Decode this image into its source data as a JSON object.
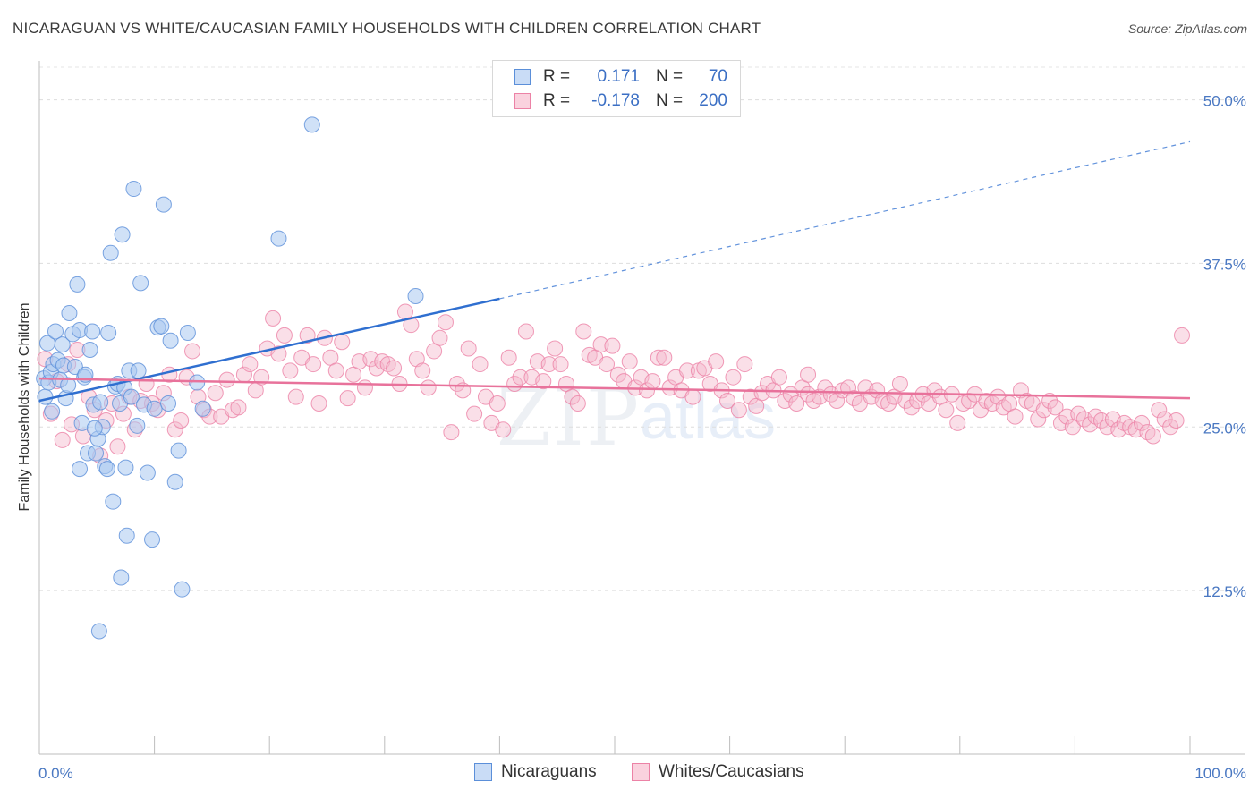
{
  "header": {
    "title": "NICARAGUAN VS WHITE/CAUCASIAN FAMILY HOUSEHOLDS WITH CHILDREN CORRELATION CHART",
    "source": "Source: ZipAtlas.com"
  },
  "watermark": {
    "zip": "ZIP",
    "atlas": "atlas"
  },
  "legend": {
    "rows": [
      {
        "r_label": "R =",
        "r_value": "0.171",
        "n_label": "N =",
        "n_value": "70",
        "color": "#a9c8f0"
      },
      {
        "r_label": "R =",
        "r_value": "-0.178",
        "n_label": "N =",
        "n_value": "200",
        "color": "#f5b8cb"
      }
    ]
  },
  "bottom_legend": [
    {
      "label": "Nicaraguans",
      "color": "#a9c8f0"
    },
    {
      "label": "Whites/Caucasians",
      "color": "#f5b8cb"
    }
  ],
  "colors": {
    "blue": "#5b8fd9",
    "blue_fill": "#a9c8f0",
    "pink": "#ec82a6",
    "pink_fill": "#f5b8cb",
    "blue_line": "#2f6fd0",
    "pink_line": "#e8729b",
    "tick": "#4a78c2"
  },
  "chart_data": {
    "type": "scatter",
    "title": "NICARAGUAN VS WHITE/CAUCASIAN FAMILY HOUSEHOLDS WITH CHILDREN CORRELATION CHART",
    "xlabel": "",
    "ylabel": "Family Households with Children",
    "xlim": [
      0,
      100
    ],
    "ylim": [
      0,
      52.5
    ],
    "y_ticks": [
      12.5,
      25.0,
      37.5,
      50.0
    ],
    "y_tick_labels": [
      "12.5%",
      "25.0%",
      "37.5%",
      "50.0%"
    ],
    "x_tick_labels": [
      "0.0%",
      "100.0%"
    ],
    "x_minor_ticks": [
      0,
      10,
      20,
      30,
      40,
      50,
      60,
      70,
      80,
      90,
      100
    ],
    "grid": true,
    "series": [
      {
        "name": "Nicaraguans",
        "r": 0.171,
        "n": 70,
        "trend": {
          "x0": 0,
          "y0": 27.0,
          "x1": 40,
          "y1": 34.8,
          "dashed_to_x": 100,
          "dashed_to_y": 46.8
        },
        "points": [
          [
            0.4,
            28.7
          ],
          [
            0.5,
            27.3
          ],
          [
            0.7,
            31.4
          ],
          [
            0.8,
            28.4
          ],
          [
            1.0,
            29.2
          ],
          [
            1.1,
            26.2
          ],
          [
            1.2,
            29.8
          ],
          [
            1.4,
            32.3
          ],
          [
            1.6,
            30.1
          ],
          [
            1.8,
            28.6
          ],
          [
            2.0,
            31.3
          ],
          [
            2.1,
            29.7
          ],
          [
            2.3,
            27.2
          ],
          [
            2.5,
            28.2
          ],
          [
            2.6,
            33.7
          ],
          [
            2.9,
            32.1
          ],
          [
            3.1,
            29.6
          ],
          [
            3.3,
            35.9
          ],
          [
            3.5,
            32.4
          ],
          [
            3.7,
            25.3
          ],
          [
            3.9,
            28.8
          ],
          [
            4.0,
            29.0
          ],
          [
            4.2,
            23.0
          ],
          [
            4.4,
            30.9
          ],
          [
            4.6,
            32.3
          ],
          [
            4.7,
            26.7
          ],
          [
            4.9,
            23.0
          ],
          [
            5.1,
            24.1
          ],
          [
            5.3,
            26.9
          ],
          [
            5.5,
            25.0
          ],
          [
            5.7,
            22.0
          ],
          [
            6.0,
            32.2
          ],
          [
            6.2,
            38.3
          ],
          [
            6.4,
            19.3
          ],
          [
            6.6,
            28.1
          ],
          [
            6.8,
            28.3
          ],
          [
            7.0,
            26.8
          ],
          [
            7.2,
            39.7
          ],
          [
            7.4,
            28.0
          ],
          [
            7.6,
            16.7
          ],
          [
            7.8,
            29.3
          ],
          [
            8.0,
            27.3
          ],
          [
            8.2,
            43.2
          ],
          [
            8.5,
            25.1
          ],
          [
            8.6,
            29.3
          ],
          [
            8.8,
            36.0
          ],
          [
            9.1,
            26.7
          ],
          [
            9.4,
            21.5
          ],
          [
            9.8,
            16.4
          ],
          [
            10.0,
            26.4
          ],
          [
            10.3,
            32.6
          ],
          [
            10.6,
            32.7
          ],
          [
            10.8,
            42.0
          ],
          [
            11.2,
            26.8
          ],
          [
            11.4,
            31.6
          ],
          [
            11.8,
            20.8
          ],
          [
            12.1,
            23.2
          ],
          [
            12.4,
            12.6
          ],
          [
            12.9,
            32.2
          ],
          [
            13.7,
            28.4
          ],
          [
            4.8,
            24.9
          ],
          [
            5.9,
            21.8
          ],
          [
            7.5,
            21.9
          ],
          [
            3.5,
            21.8
          ],
          [
            5.2,
            9.4
          ],
          [
            7.1,
            13.5
          ],
          [
            14.2,
            26.4
          ],
          [
            20.8,
            39.4
          ],
          [
            23.7,
            48.1
          ],
          [
            32.7,
            35.0
          ]
        ]
      },
      {
        "name": "Whites/Caucasians",
        "r": -0.178,
        "n": 200,
        "trend": {
          "x0": 0,
          "y0": 28.7,
          "x1": 100,
          "y1": 27.2
        },
        "points": [
          [
            0.5,
            30.2
          ],
          [
            1.0,
            26.0
          ],
          [
            1.5,
            28.5
          ],
          [
            2.0,
            24.0
          ],
          [
            2.5,
            29.8
          ],
          [
            2.8,
            25.2
          ],
          [
            3.3,
            30.9
          ],
          [
            3.8,
            24.3
          ],
          [
            4.3,
            27.3
          ],
          [
            4.8,
            26.3
          ],
          [
            5.3,
            22.8
          ],
          [
            5.8,
            25.5
          ],
          [
            6.3,
            26.8
          ],
          [
            6.8,
            23.5
          ],
          [
            7.3,
            26.0
          ],
          [
            7.8,
            27.3
          ],
          [
            8.3,
            24.8
          ],
          [
            8.8,
            27.0
          ],
          [
            9.3,
            28.3
          ],
          [
            9.8,
            26.8
          ],
          [
            10.3,
            26.3
          ],
          [
            10.8,
            27.6
          ],
          [
            11.3,
            29.0
          ],
          [
            11.8,
            24.8
          ],
          [
            12.3,
            25.5
          ],
          [
            12.8,
            28.8
          ],
          [
            13.3,
            30.8
          ],
          [
            13.8,
            27.3
          ],
          [
            14.3,
            26.3
          ],
          [
            14.8,
            25.8
          ],
          [
            15.3,
            27.6
          ],
          [
            15.8,
            25.8
          ],
          [
            16.3,
            28.6
          ],
          [
            16.8,
            26.3
          ],
          [
            17.3,
            26.5
          ],
          [
            17.8,
            29.0
          ],
          [
            18.3,
            29.8
          ],
          [
            18.8,
            27.8
          ],
          [
            19.3,
            28.8
          ],
          [
            19.8,
            31.0
          ],
          [
            20.3,
            33.3
          ],
          [
            20.8,
            30.6
          ],
          [
            21.3,
            32.0
          ],
          [
            21.8,
            29.3
          ],
          [
            22.3,
            27.3
          ],
          [
            22.8,
            30.3
          ],
          [
            23.3,
            32.0
          ],
          [
            23.8,
            29.8
          ],
          [
            24.3,
            26.8
          ],
          [
            24.8,
            31.8
          ],
          [
            25.3,
            30.3
          ],
          [
            25.8,
            29.3
          ],
          [
            26.3,
            31.5
          ],
          [
            26.8,
            27.2
          ],
          [
            27.3,
            29.0
          ],
          [
            27.8,
            30.0
          ],
          [
            28.3,
            28.0
          ],
          [
            28.8,
            30.2
          ],
          [
            29.3,
            29.5
          ],
          [
            29.8,
            30.0
          ],
          [
            30.3,
            29.8
          ],
          [
            30.8,
            29.5
          ],
          [
            31.3,
            28.3
          ],
          [
            31.8,
            33.8
          ],
          [
            32.3,
            32.8
          ],
          [
            32.8,
            30.2
          ],
          [
            33.3,
            29.3
          ],
          [
            33.8,
            28.0
          ],
          [
            34.3,
            30.8
          ],
          [
            34.8,
            31.8
          ],
          [
            35.3,
            33.0
          ],
          [
            35.8,
            24.6
          ],
          [
            36.3,
            28.3
          ],
          [
            36.8,
            27.8
          ],
          [
            37.3,
            31.0
          ],
          [
            37.8,
            26.0
          ],
          [
            38.3,
            29.8
          ],
          [
            38.8,
            27.3
          ],
          [
            39.3,
            25.3
          ],
          [
            39.8,
            26.8
          ],
          [
            40.3,
            24.8
          ],
          [
            40.8,
            30.3
          ],
          [
            41.3,
            28.3
          ],
          [
            41.8,
            28.8
          ],
          [
            42.3,
            32.3
          ],
          [
            42.8,
            28.8
          ],
          [
            43.3,
            30.0
          ],
          [
            43.8,
            28.5
          ],
          [
            44.3,
            29.8
          ],
          [
            44.8,
            31.0
          ],
          [
            45.3,
            29.8
          ],
          [
            45.8,
            28.3
          ],
          [
            46.3,
            27.3
          ],
          [
            46.8,
            26.8
          ],
          [
            47.3,
            32.3
          ],
          [
            47.8,
            30.5
          ],
          [
            48.3,
            30.3
          ],
          [
            48.8,
            31.3
          ],
          [
            49.3,
            29.8
          ],
          [
            49.8,
            31.2
          ],
          [
            50.3,
            29.0
          ],
          [
            50.8,
            28.5
          ],
          [
            51.3,
            30.0
          ],
          [
            51.8,
            28.0
          ],
          [
            52.3,
            28.8
          ],
          [
            52.8,
            27.8
          ],
          [
            53.3,
            28.5
          ],
          [
            53.8,
            30.3
          ],
          [
            54.3,
            30.3
          ],
          [
            54.8,
            28.0
          ],
          [
            55.3,
            28.8
          ],
          [
            55.8,
            27.8
          ],
          [
            56.3,
            29.3
          ],
          [
            56.8,
            27.3
          ],
          [
            57.3,
            29.3
          ],
          [
            57.8,
            29.5
          ],
          [
            58.3,
            28.3
          ],
          [
            58.8,
            30.0
          ],
          [
            59.3,
            27.8
          ],
          [
            59.8,
            27.0
          ],
          [
            60.3,
            28.8
          ],
          [
            60.8,
            26.3
          ],
          [
            61.3,
            29.8
          ],
          [
            61.8,
            27.3
          ],
          [
            62.3,
            26.6
          ],
          [
            62.8,
            27.6
          ],
          [
            63.3,
            28.3
          ],
          [
            63.8,
            27.8
          ],
          [
            64.3,
            28.8
          ],
          [
            64.8,
            27.0
          ],
          [
            65.3,
            27.5
          ],
          [
            65.8,
            26.8
          ],
          [
            66.3,
            28.0
          ],
          [
            66.8,
            27.5
          ],
          [
            67.3,
            27.0
          ],
          [
            67.8,
            27.3
          ],
          [
            68.3,
            28.0
          ],
          [
            68.8,
            27.5
          ],
          [
            69.3,
            27.0
          ],
          [
            69.8,
            27.8
          ],
          [
            70.3,
            28.0
          ],
          [
            70.8,
            27.2
          ],
          [
            71.3,
            26.8
          ],
          [
            71.8,
            28.0
          ],
          [
            72.3,
            27.3
          ],
          [
            72.8,
            27.8
          ],
          [
            73.3,
            27.0
          ],
          [
            73.8,
            26.8
          ],
          [
            74.3,
            27.3
          ],
          [
            74.8,
            28.3
          ],
          [
            75.3,
            27.0
          ],
          [
            75.8,
            26.5
          ],
          [
            76.3,
            27.0
          ],
          [
            76.8,
            27.5
          ],
          [
            77.3,
            26.8
          ],
          [
            77.8,
            27.8
          ],
          [
            78.3,
            27.3
          ],
          [
            78.8,
            26.3
          ],
          [
            79.3,
            27.5
          ],
          [
            79.8,
            25.3
          ],
          [
            80.3,
            26.8
          ],
          [
            80.8,
            27.0
          ],
          [
            81.3,
            27.5
          ],
          [
            81.8,
            26.3
          ],
          [
            82.3,
            27.0
          ],
          [
            82.8,
            26.8
          ],
          [
            83.3,
            27.3
          ],
          [
            83.8,
            26.5
          ],
          [
            84.3,
            26.8
          ],
          [
            84.8,
            25.8
          ],
          [
            85.3,
            27.8
          ],
          [
            85.8,
            27.0
          ],
          [
            86.3,
            26.8
          ],
          [
            86.8,
            25.6
          ],
          [
            87.3,
            26.3
          ],
          [
            87.8,
            27.0
          ],
          [
            88.3,
            26.5
          ],
          [
            88.8,
            25.3
          ],
          [
            89.3,
            25.8
          ],
          [
            89.8,
            25.0
          ],
          [
            90.3,
            26.0
          ],
          [
            90.8,
            25.6
          ],
          [
            91.3,
            25.2
          ],
          [
            91.8,
            25.8
          ],
          [
            92.3,
            25.5
          ],
          [
            92.8,
            25.0
          ],
          [
            93.3,
            25.6
          ],
          [
            93.8,
            24.8
          ],
          [
            94.3,
            25.3
          ],
          [
            94.8,
            25.0
          ],
          [
            95.3,
            24.8
          ],
          [
            95.8,
            25.3
          ],
          [
            96.3,
            24.6
          ],
          [
            96.8,
            24.3
          ],
          [
            97.3,
            26.3
          ],
          [
            97.8,
            25.6
          ],
          [
            98.3,
            25.0
          ],
          [
            98.8,
            25.5
          ],
          [
            99.3,
            32.0
          ],
          [
            66.8,
            29.0
          ]
        ]
      }
    ]
  }
}
